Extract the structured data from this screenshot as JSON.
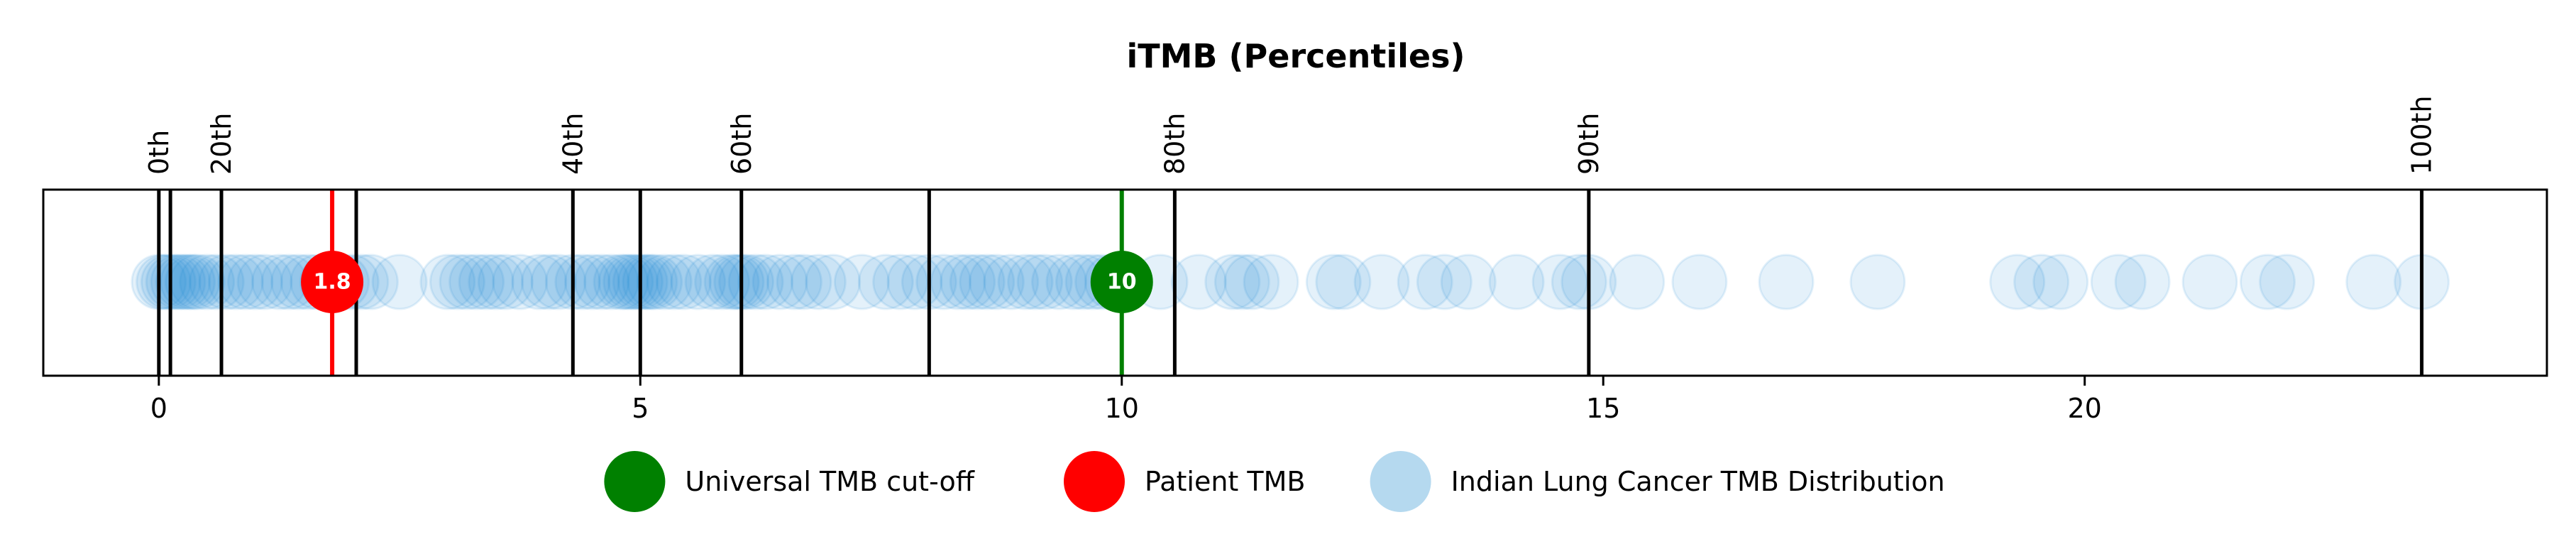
{
  "chart_data": {
    "type": "scatter",
    "title": "iTMB (Percentiles)",
    "xlabel": "",
    "ylabel": "",
    "xlim": [
      -1.2,
      24.8
    ],
    "x_ticks": [
      0,
      5,
      10,
      15,
      20
    ],
    "grid": false,
    "percentile_lines": [
      {
        "label": "0th",
        "x": 0
      },
      {
        "label": "",
        "x": 0.12
      },
      {
        "label": "20th",
        "x": 0.65
      },
      {
        "label": "",
        "x": 2.05
      },
      {
        "label": "40th",
        "x": 4.3
      },
      {
        "label": "",
        "x": 5.0
      },
      {
        "label": "60th",
        "x": 6.05
      },
      {
        "label": "",
        "x": 8.0
      },
      {
        "label": "80th",
        "x": 10.55
      },
      {
        "label": "90th",
        "x": 14.85
      },
      {
        "label": "100th",
        "x": 23.5
      }
    ],
    "patient_tmb": {
      "value": 1.8,
      "label": "1.8",
      "color": "#ff0000"
    },
    "universal_cutoff": {
      "value": 10,
      "label": "10",
      "color": "#008000"
    },
    "distribution": {
      "color": "#1f8fd6",
      "values": [
        0.0,
        0.05,
        0.1,
        0.15,
        0.2,
        0.25,
        0.3,
        0.35,
        0.4,
        0.5,
        0.6,
        0.7,
        0.8,
        0.9,
        1.0,
        1.1,
        1.25,
        1.35,
        1.45,
        1.55,
        1.65,
        1.75,
        1.9,
        2.0,
        2.1,
        2.2,
        2.5,
        3.0,
        3.1,
        3.2,
        3.3,
        3.4,
        3.5,
        3.6,
        3.75,
        3.95,
        4.05,
        4.15,
        4.3,
        4.4,
        4.5,
        4.6,
        4.7,
        4.8,
        4.85,
        4.9,
        4.95,
        5.0,
        5.05,
        5.1,
        5.15,
        5.25,
        5.35,
        5.45,
        5.6,
        5.75,
        5.85,
        5.95,
        6.0,
        6.05,
        6.1,
        6.2,
        6.3,
        6.45,
        6.6,
        6.7,
        6.85,
        7.0,
        7.3,
        7.55,
        7.7,
        7.85,
        8.0,
        8.15,
        8.3,
        8.4,
        8.5,
        8.6,
        8.7,
        8.85,
        9.0,
        9.1,
        9.2,
        9.35,
        9.5,
        9.6,
        9.7,
        9.8,
        9.9,
        10.0,
        10.4,
        10.8,
        11.15,
        11.25,
        11.35,
        11.55,
        12.2,
        12.3,
        12.7,
        13.15,
        13.35,
        13.6,
        14.1,
        14.55,
        14.75,
        14.85,
        15.35,
        16.0,
        16.9,
        17.85,
        19.3,
        19.55,
        19.75,
        20.35,
        20.6,
        21.3,
        21.9,
        22.1,
        23.0,
        23.5
      ]
    },
    "legend": {
      "placement": "bottom-center",
      "entries": [
        {
          "label": "Universal TMB cut-off",
          "color": "#008000"
        },
        {
          "label": "Patient TMB",
          "color": "#ff0000"
        },
        {
          "label": "Indian Lung Cancer TMB Distribution",
          "color": "#b5d9ef"
        }
      ]
    }
  }
}
